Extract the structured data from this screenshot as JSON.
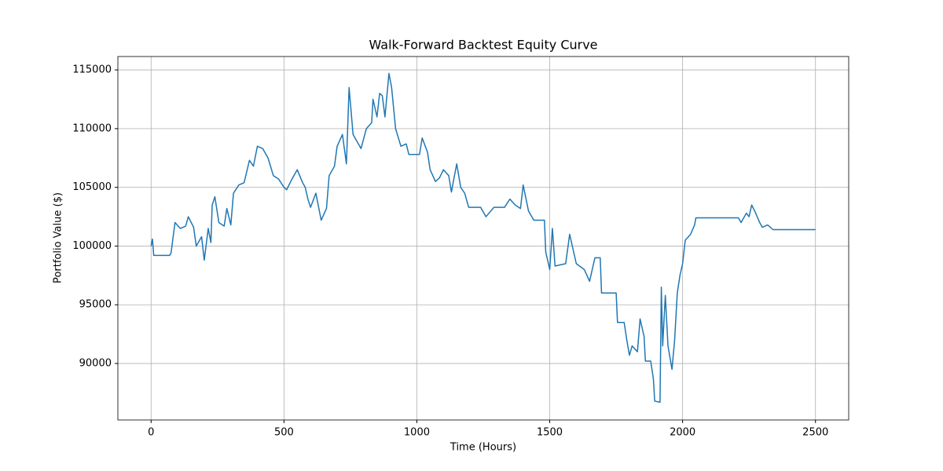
{
  "chart_data": {
    "type": "line",
    "title": "Walk-Forward Backtest Equity Curve",
    "x_label": "Time (Hours)",
    "y_label": "Portfolio Value ($)",
    "x": [
      0,
      5,
      10,
      70,
      75,
      90,
      110,
      130,
      140,
      160,
      170,
      190,
      200,
      215,
      225,
      230,
      240,
      255,
      275,
      285,
      300,
      310,
      330,
      350,
      370,
      385,
      400,
      420,
      440,
      460,
      480,
      500,
      510,
      530,
      550,
      570,
      580,
      590,
      600,
      620,
      640,
      660,
      670,
      690,
      700,
      720,
      735,
      745,
      760,
      790,
      810,
      830,
      835,
      850,
      860,
      870,
      880,
      895,
      905,
      920,
      940,
      960,
      970,
      1010,
      1020,
      1040,
      1050,
      1070,
      1085,
      1100,
      1120,
      1130,
      1150,
      1165,
      1180,
      1195,
      1240,
      1260,
      1290,
      1330,
      1350,
      1370,
      1390,
      1400,
      1420,
      1440,
      1480,
      1485,
      1500,
      1510,
      1520,
      1560,
      1575,
      1600,
      1630,
      1650,
      1670,
      1690,
      1695,
      1750,
      1755,
      1780,
      1790,
      1800,
      1810,
      1830,
      1840,
      1855,
      1860,
      1880,
      1890,
      1895,
      1915,
      1920,
      1925,
      1935,
      1945,
      1960,
      1970,
      1980,
      1990,
      2000,
      2010,
      2030,
      2045,
      2050,
      2210,
      2220,
      2240,
      2250,
      2260,
      2275,
      2290,
      2300,
      2320,
      2340,
      2500
    ],
    "series": [
      {
        "name": "Portfolio Value",
        "color": "#1f77b4",
        "values": [
          100000,
          100600,
          99200,
          99200,
          99400,
          102000,
          101500,
          101700,
          102500,
          101600,
          100000,
          100800,
          98800,
          101500,
          100300,
          103500,
          104200,
          102000,
          101700,
          103200,
          101800,
          104500,
          105200,
          105400,
          107300,
          106800,
          108500,
          108300,
          107500,
          106000,
          105700,
          105000,
          104800,
          105700,
          106500,
          105400,
          105000,
          104000,
          103300,
          104500,
          102200,
          103200,
          106000,
          106800,
          108500,
          109500,
          107000,
          113500,
          109500,
          108300,
          110000,
          110500,
          112500,
          111000,
          113000,
          112800,
          111000,
          114700,
          113500,
          110000,
          108500,
          108700,
          107800,
          107800,
          109200,
          108000,
          106500,
          105500,
          105800,
          106500,
          106000,
          104600,
          107000,
          105000,
          104500,
          103300,
          103300,
          102500,
          103300,
          103300,
          104000,
          103500,
          103200,
          105200,
          103000,
          102200,
          102200,
          99500,
          98000,
          101500,
          98300,
          98500,
          101000,
          98500,
          98000,
          97000,
          99000,
          99000,
          96000,
          96000,
          93500,
          93500,
          92000,
          90700,
          91500,
          91000,
          93800,
          92300,
          90200,
          90200,
          88700,
          86800,
          86700,
          96500,
          91500,
          95800,
          91500,
          89500,
          92000,
          96000,
          97500,
          98500,
          100500,
          101000,
          101800,
          102400,
          102400,
          102000,
          102800,
          102500,
          103500,
          102800,
          102000,
          101600,
          101800,
          101400,
          101400
        ]
      }
    ],
    "xlim": [
      -125,
      2625
    ],
    "ylim": [
      85190,
      116140
    ],
    "xticks": [
      0,
      500,
      1000,
      1500,
      2000,
      2500
    ],
    "yticks": [
      90000,
      95000,
      100000,
      105000,
      110000,
      115000
    ],
    "grid": true
  }
}
